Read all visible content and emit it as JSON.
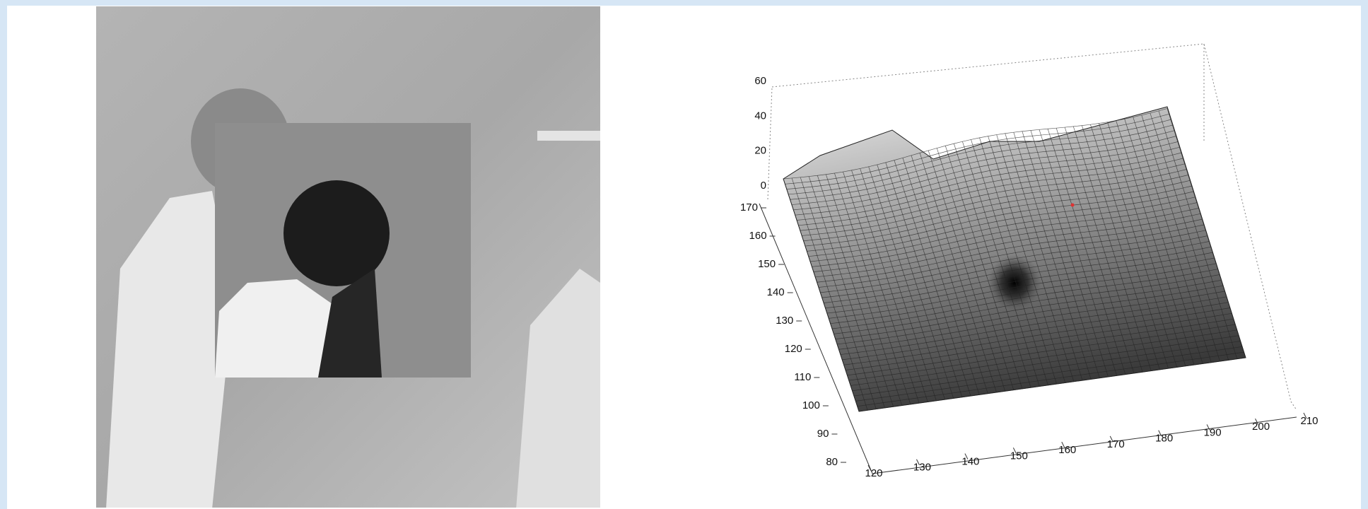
{
  "surface_plot": {
    "z_ticks": [
      0,
      20,
      40,
      60
    ],
    "y_ticks": [
      170,
      160,
      150,
      140,
      130,
      120,
      110,
      100,
      90,
      80
    ],
    "x_ticks": [
      120,
      130,
      140,
      150,
      160,
      170,
      180,
      190,
      200,
      210
    ]
  }
}
